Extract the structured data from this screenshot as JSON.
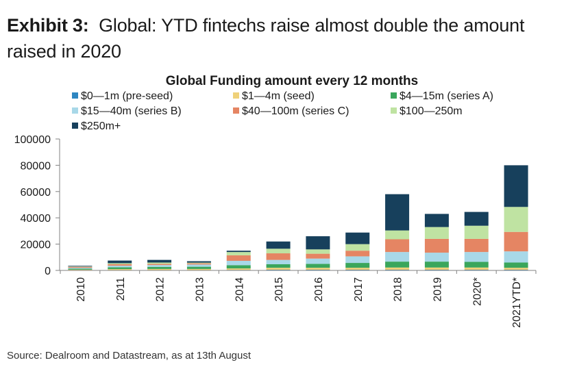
{
  "exhibit": {
    "label": "Exhibit 3:",
    "title": "Global: YTD fintechs raise almost double the amount raised in 2020"
  },
  "source": "Source: Dealroom and Datastream, as at 13th August",
  "chart_data": {
    "type": "bar",
    "stacked": true,
    "title": "Global Funding amount every 12 months",
    "xlabel": "",
    "ylabel": "",
    "ylim": [
      0,
      100000
    ],
    "yticks": [
      0,
      20000,
      40000,
      60000,
      80000,
      100000
    ],
    "legend_position": "top",
    "categories": [
      "2010",
      "2011",
      "2012",
      "2013",
      "2014",
      "2015",
      "2016",
      "2017",
      "2018",
      "2019",
      "2020*",
      "2021YTD*"
    ],
    "series": [
      {
        "name": "$0—1m (pre-seed)",
        "color": "#2e86c1",
        "values": [
          200,
          300,
          300,
          300,
          400,
          500,
          500,
          500,
          500,
          500,
          500,
          500
        ]
      },
      {
        "name": "$1—4m (seed)",
        "color": "#efd17a",
        "values": [
          400,
          700,
          800,
          800,
          1100,
          1500,
          1500,
          1500,
          1700,
          1700,
          1700,
          1500
        ]
      },
      {
        "name": "$4—15m (series A)",
        "color": "#3aa65c",
        "values": [
          700,
          1400,
          1600,
          1700,
          2500,
          2700,
          3000,
          3700,
          4500,
          4500,
          4300,
          4000
        ]
      },
      {
        "name": "$15—40m (series B)",
        "color": "#a8d8e8",
        "values": [
          700,
          1200,
          1400,
          1700,
          3300,
          3300,
          4000,
          5000,
          7300,
          6800,
          7500,
          8500
        ]
      },
      {
        "name": "$40—100m (series C)",
        "color": "#e58563",
        "values": [
          700,
          1100,
          900,
          900,
          4200,
          5000,
          3700,
          4300,
          9700,
          10500,
          10000,
          14800
        ]
      },
      {
        "name": "$100—250m",
        "color": "#bfe3a2",
        "values": [
          300,
          800,
          1000,
          500,
          2500,
          3500,
          3300,
          5000,
          6700,
          9000,
          10000,
          19000
        ]
      },
      {
        "name": "$250m+",
        "color": "#17405c",
        "values": [
          500,
          2000,
          2000,
          1100,
          1000,
          5500,
          10000,
          8800,
          27600,
          10000,
          10500,
          31700
        ]
      }
    ]
  }
}
